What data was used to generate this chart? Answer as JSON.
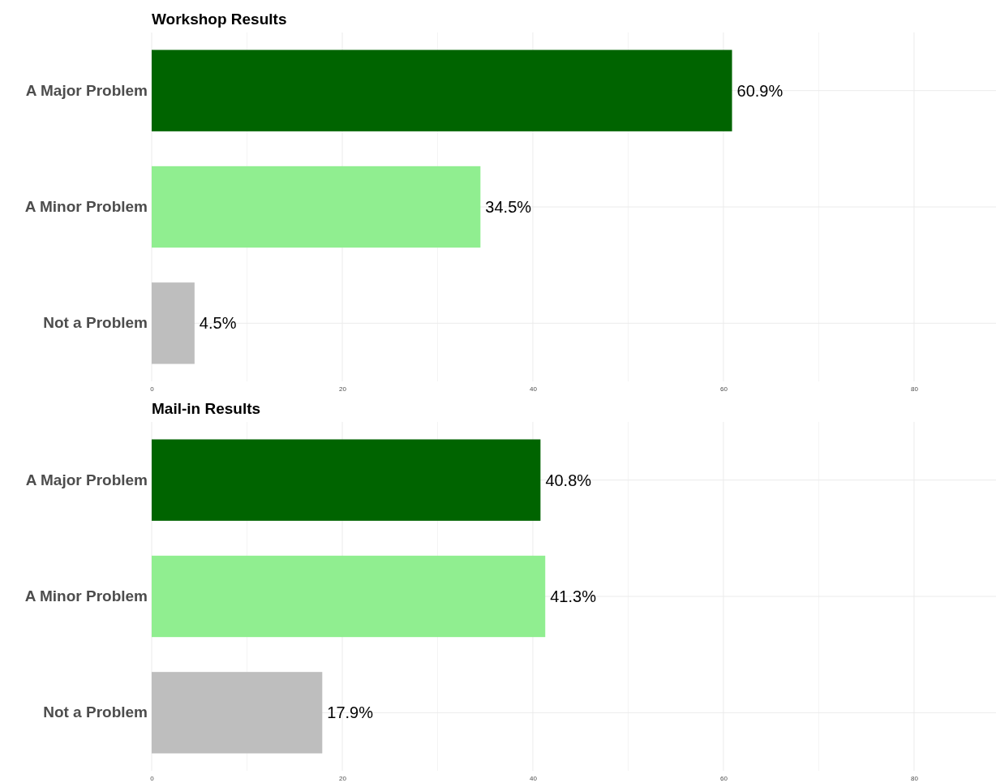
{
  "chart_data": [
    {
      "type": "bar",
      "orientation": "horizontal",
      "title": "Workshop Results",
      "categories": [
        "A Major Problem",
        "A Minor Problem",
        "Not a Problem"
      ],
      "values": [
        60.9,
        34.5,
        4.5
      ],
      "colors": [
        "#006400",
        "#90ee90",
        "#bebebe"
      ],
      "value_labels": [
        "60.9%",
        "34.5%",
        "4.5%"
      ],
      "xlim": [
        0,
        88.6
      ],
      "xticks": [
        0,
        {
          "value": 10,
          "label": null
        },
        20,
        {
          "value": 30,
          "label": null
        },
        40,
        {
          "value": 50,
          "label": null
        },
        60,
        {
          "value": 70,
          "label": null
        },
        80
      ],
      "grid": true
    },
    {
      "type": "bar",
      "orientation": "horizontal",
      "title": "Mail-in Results",
      "categories": [
        "A Major Problem",
        "A Minor Problem",
        "Not a Problem"
      ],
      "values": [
        40.8,
        41.3,
        17.9
      ],
      "colors": [
        "#006400",
        "#90ee90",
        "#bebebe"
      ],
      "value_labels": [
        "40.8%",
        "41.3%",
        "17.9%"
      ],
      "xlim": [
        0,
        88.6
      ],
      "xticks": [
        0,
        {
          "value": 10,
          "label": null
        },
        20,
        {
          "value": 30,
          "label": null
        },
        40,
        {
          "value": 50,
          "label": null
        },
        60,
        {
          "value": 70,
          "label": null
        },
        80
      ],
      "grid": true
    }
  ]
}
